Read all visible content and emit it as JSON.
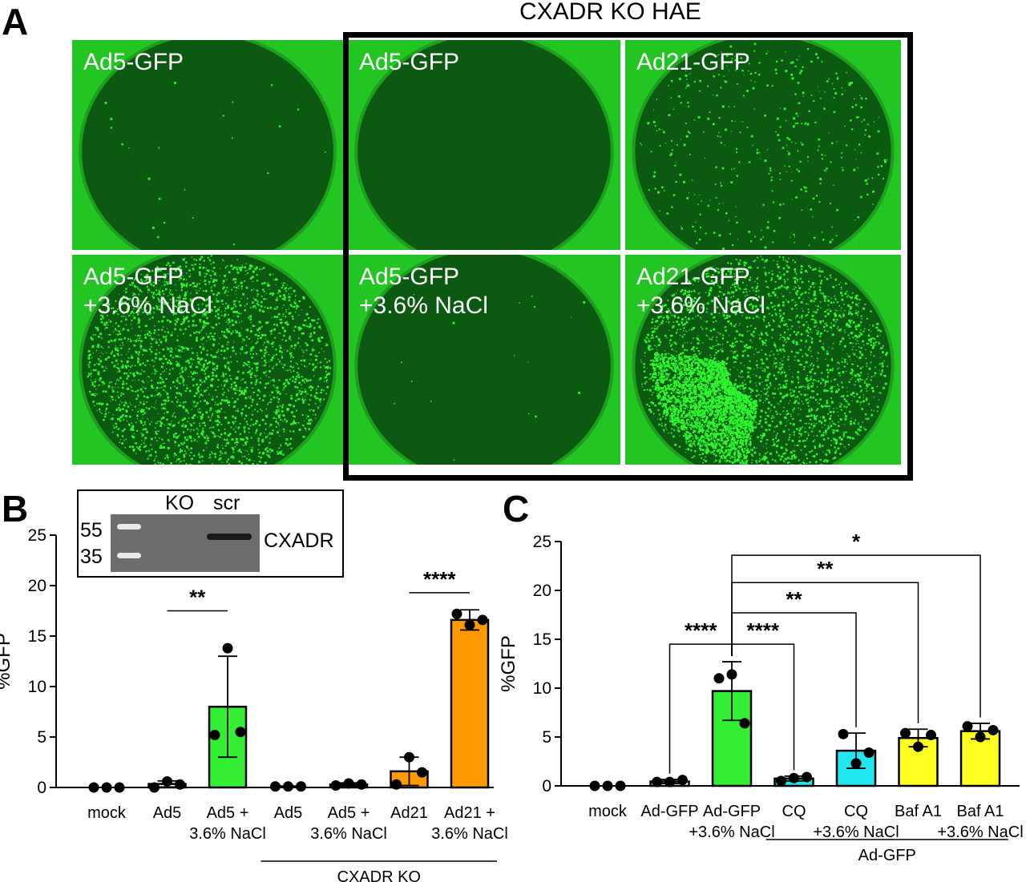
{
  "figure": {
    "panel_labels": {
      "a": "A",
      "b": "B",
      "c": "C"
    },
    "panel_a_title": "CXADR KO HAE",
    "colors": {
      "gfp_bright": "#2ef52e",
      "gfp_dark": "#0c5a12",
      "ring": "#22c522",
      "frame": "#000000",
      "bar_green": "#33ee33",
      "bar_orange": "#ff9b00",
      "bar_cyan": "#22e6ee",
      "bar_yellow": "#ffff22"
    }
  },
  "micrographs": [
    {
      "label": "Ad5-GFP",
      "infection": "sparse-rim"
    },
    {
      "label": "Ad5-GFP",
      "infection": "none"
    },
    {
      "label": "Ad21-GFP",
      "infection": "sparse"
    },
    {
      "label": "Ad5-GFP\n+3.6% NaCl",
      "infection": "moderate"
    },
    {
      "label": "Ad5-GFP\n+3.6% NaCl",
      "infection": "faint"
    },
    {
      "label": "Ad21-GFP\n+3.6% NaCl",
      "infection": "heavy"
    }
  ],
  "inset": {
    "lanes": [
      "KO",
      "scr"
    ],
    "markers": [
      "55",
      "35"
    ],
    "band_label": "CXADR"
  },
  "chart_data": [
    {
      "panel": "B",
      "type": "bar",
      "ylabel": "%GFP",
      "ylim": [
        0,
        25
      ],
      "yticks": [
        0,
        5,
        10,
        15,
        20,
        25
      ],
      "categories": [
        "mock",
        "Ad5",
        "Ad5 +\n3.6% NaCl",
        "Ad5",
        "Ad5 +\n3.6% NaCl",
        "Ad21",
        "Ad21 +\n3.6% NaCl"
      ],
      "values": [
        0,
        0.35,
        8.0,
        0.1,
        0.3,
        1.6,
        16.6
      ],
      "errors": [
        0,
        0.3,
        5.0,
        0.05,
        0.15,
        1.4,
        1.0
      ],
      "points": [
        [
          0,
          0,
          0
        ],
        [
          0,
          0.6,
          0.3
        ],
        [
          5.2,
          13.8,
          5.5
        ],
        [
          0.1,
          0.1,
          0.1
        ],
        [
          0.2,
          0.4,
          0.3
        ],
        [
          0.3,
          3.0,
          1.5
        ],
        [
          17.2,
          16.1,
          16.6
        ]
      ],
      "bar_colors": [
        "#ffffff",
        "#ffffff",
        "#33ee33",
        "#ffffff",
        "#ffffff",
        "#ff9b00",
        "#ff9b00"
      ],
      "group_label": "CXADR KO",
      "group_span": [
        3,
        6
      ],
      "comparisons": [
        {
          "from": 1,
          "to": 2,
          "y": 17.5,
          "label": "**"
        },
        {
          "from": 5,
          "to": 6,
          "y": 19.3,
          "label": "****"
        }
      ]
    },
    {
      "panel": "C",
      "type": "bar",
      "ylabel": "%GFP",
      "ylim": [
        0,
        25
      ],
      "yticks": [
        0,
        5,
        10,
        15,
        20,
        25
      ],
      "categories": [
        "mock",
        "Ad-GFP",
        "Ad-GFP\n+3.6% NaCl",
        "CQ",
        "CQ\n+3.6% NaCl",
        "Baf A1",
        "Baf A1\n+3.6% NaCl"
      ],
      "values": [
        0,
        0.45,
        9.7,
        0.75,
        3.6,
        4.9,
        5.6
      ],
      "errors": [
        0,
        0.2,
        3.0,
        0.25,
        1.8,
        0.9,
        0.8
      ],
      "points": [
        [
          0,
          0,
          0
        ],
        [
          0.4,
          0.4,
          0.6
        ],
        [
          11.0,
          11.4,
          6.4
        ],
        [
          0.5,
          0.8,
          0.9
        ],
        [
          5.3,
          2.3,
          3.4
        ],
        [
          5.4,
          4.0,
          5.2
        ],
        [
          6.1,
          5.0,
          5.7
        ]
      ],
      "bar_colors": [
        "#ffffff",
        "#ffffff",
        "#33ee33",
        "#22e6ee",
        "#22e6ee",
        "#ffff22",
        "#ffff22"
      ],
      "group_label": "Ad-GFP",
      "group_span": [
        3,
        6
      ],
      "comparisons": [
        {
          "from": 1,
          "to": 2,
          "y": 14.5,
          "label": "****"
        },
        {
          "from": 2,
          "to": 3,
          "y": 14.5,
          "label": "****"
        },
        {
          "from": 2,
          "to": 4,
          "y": 17.7,
          "label": "**"
        },
        {
          "from": 2,
          "to": 5,
          "y": 20.8,
          "label": "**"
        },
        {
          "from": 2,
          "to": 6,
          "y": 23.6,
          "label": "*"
        }
      ]
    }
  ]
}
